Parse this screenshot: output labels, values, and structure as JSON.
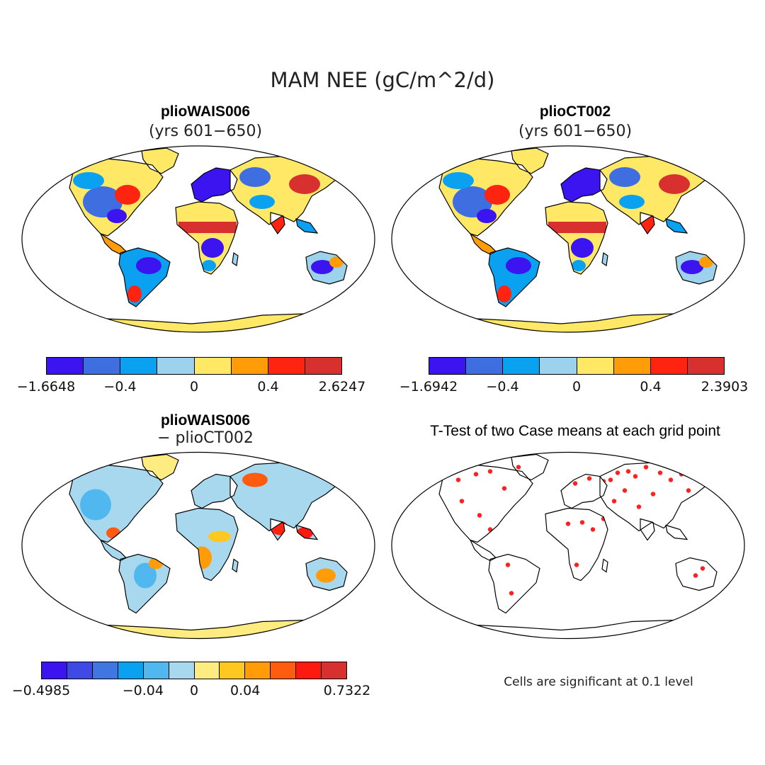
{
  "figure": {
    "title": "MAM NEE (gC/m^2/d)"
  },
  "panels": [
    {
      "id": "plioWAIS006",
      "title": "plioWAIS006",
      "subtitle": "(yrs 601−650)",
      "colorbar": {
        "colors": [
          "#3b14f0",
          "#3f6ee0",
          "#0aa2f0",
          "#9dd2ec",
          "#ffe866",
          "#ff9c08",
          "#ff2410",
          "#d7302e"
        ],
        "labels": [
          "−1.6648",
          "−0.4",
          "0",
          "0.4",
          "2.6247"
        ]
      }
    },
    {
      "id": "plioCT002",
      "title": "plioCT002",
      "subtitle": "(yrs 601−650)",
      "colorbar": {
        "colors": [
          "#3b14f0",
          "#3f6ee0",
          "#0aa2f0",
          "#9dd2ec",
          "#ffe866",
          "#ff9c08",
          "#ff2410",
          "#d7302e"
        ],
        "labels": [
          "−1.6942",
          "−0.4",
          "0",
          "0.4",
          "2.3903"
        ]
      }
    },
    {
      "id": "difference",
      "title": "plioWAIS006",
      "subtitle": "− plioCT002",
      "colorbar": {
        "colors": [
          "#3b14f0",
          "#3f4ae6",
          "#3f76e0",
          "#0aa2f0",
          "#50b8ee",
          "#a8d8ee",
          "#ffec80",
          "#ffc820",
          "#ff9c08",
          "#ff5c10",
          "#ff1a10",
          "#d7302e"
        ],
        "labels": [
          "−0.4985",
          "−0.04",
          "0",
          "0.04",
          "0.7322"
        ]
      }
    },
    {
      "id": "ttest",
      "title": "T-Test of two Case means at each grid point",
      "note": "Cells are significant at 0.1 level",
      "significance_color": "#ff2020"
    }
  ]
}
